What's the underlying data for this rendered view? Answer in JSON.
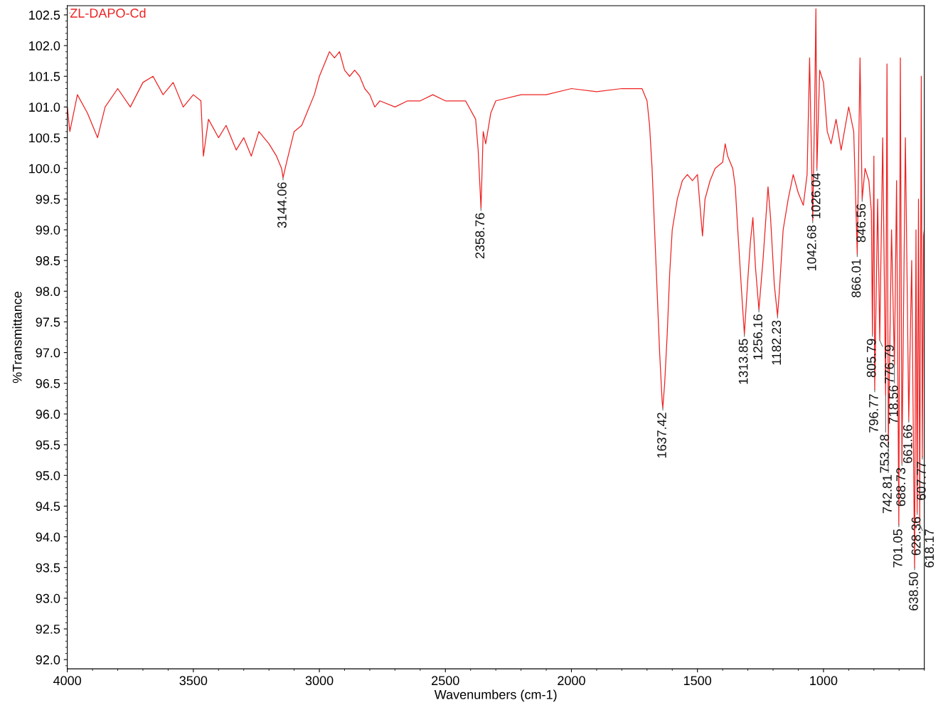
{
  "chart_data": {
    "type": "line",
    "xlabel": "Wavenumbers (cm-1)",
    "ylabel": "%Transmittance",
    "xlim": [
      4000,
      600
    ],
    "ylim": [
      91.85,
      102.65
    ],
    "xticks": [
      4000,
      3500,
      3000,
      2500,
      2000,
      1500,
      1000
    ],
    "yticks": [
      {
        "value": 92,
        "label": "92.0"
      },
      92.5,
      {
        "value": 93,
        "label": "93.0"
      },
      93.5,
      {
        "value": 94,
        "label": "94.0"
      },
      94.5,
      {
        "value": 95,
        "label": "95.0"
      },
      95.5,
      {
        "value": 96,
        "label": "96.0"
      },
      96.5,
      {
        "value": 97,
        "label": "97.0"
      },
      97.5,
      {
        "value": 98,
        "label": "98.0"
      },
      98.5,
      {
        "value": 99,
        "label": "99.0"
      },
      99.5,
      {
        "value": 100,
        "label": "100.0"
      },
      100.5,
      {
        "value": 101,
        "label": "101.0"
      },
      101.5,
      {
        "value": 102,
        "label": "102.0"
      },
      102.5
    ],
    "grid": false,
    "legend": "top left",
    "marker": "none",
    "line_style": "solid",
    "series": [
      {
        "name": "ZL-DAPO-Cd",
        "color": "#ee2222",
        "x": [
          4000,
          3990,
          3960,
          3920,
          3880,
          3850,
          3800,
          3750,
          3700,
          3660,
          3620,
          3580,
          3540,
          3500,
          3470,
          3460,
          3440,
          3400,
          3370,
          3330,
          3300,
          3270,
          3240,
          3200,
          3170,
          3150,
          3144.06,
          3130,
          3100,
          3070,
          3050,
          3020,
          3000,
          2980,
          2960,
          2940,
          2920,
          2900,
          2880,
          2860,
          2840,
          2820,
          2800,
          2780,
          2760,
          2700,
          2650,
          2600,
          2550,
          2500,
          2420,
          2380,
          2370,
          2358.76,
          2350,
          2340,
          2320,
          2300,
          2200,
          2100,
          2000,
          1900,
          1800,
          1720,
          1700,
          1690,
          1680,
          1670,
          1660,
          1650,
          1640,
          1637.42,
          1630,
          1620,
          1610,
          1600,
          1580,
          1560,
          1540,
          1520,
          1500,
          1480,
          1470,
          1450,
          1430,
          1400,
          1390,
          1380,
          1360,
          1350,
          1340,
          1325,
          1313.85,
          1300,
          1290,
          1280,
          1270,
          1256.16,
          1240,
          1220,
          1210,
          1195,
          1182.23,
          1175,
          1160,
          1140,
          1120,
          1100,
          1080,
          1065,
          1055,
          1042.68,
          1035,
          1030,
          1026.04,
          1015,
          1000,
          985,
          970,
          950,
          930,
          900,
          880,
          866.01,
          855,
          846.56,
          835,
          820,
          810,
          805.79,
          800,
          796.77,
          785,
          776.79,
          765,
          753.28,
          748,
          742.81,
          730,
          718.56,
          710,
          701.05,
          695,
          688.73,
          675,
          661.66,
          650,
          638.5,
          633,
          628.36,
          623,
          618.17,
          612,
          607.77,
          603,
          600
        ],
        "values": [
          101.0,
          100.6,
          101.2,
          100.9,
          100.5,
          101.0,
          101.3,
          101.0,
          101.4,
          101.5,
          101.2,
          101.4,
          101.0,
          101.2,
          101.1,
          100.2,
          100.8,
          100.5,
          100.7,
          100.3,
          100.5,
          100.2,
          100.6,
          100.4,
          100.2,
          100.0,
          99.85,
          100.1,
          100.6,
          100.7,
          100.9,
          101.2,
          101.5,
          101.7,
          101.9,
          101.8,
          101.9,
          101.6,
          101.5,
          101.6,
          101.5,
          101.3,
          101.2,
          101.0,
          101.1,
          101.0,
          101.1,
          101.1,
          101.2,
          101.1,
          101.1,
          100.8,
          100.3,
          99.35,
          100.6,
          100.4,
          100.9,
          101.1,
          101.2,
          101.2,
          101.3,
          101.25,
          101.3,
          101.3,
          101.1,
          100.7,
          100.0,
          99.0,
          98.0,
          97.0,
          96.2,
          96.1,
          96.5,
          97.3,
          98.3,
          99.0,
          99.5,
          99.8,
          99.9,
          99.8,
          99.9,
          98.9,
          99.5,
          99.8,
          100.0,
          100.1,
          100.4,
          100.2,
          100.0,
          99.7,
          99.0,
          98.0,
          97.3,
          98.2,
          98.8,
          99.2,
          98.4,
          97.7,
          98.5,
          99.7,
          99.2,
          98.1,
          97.6,
          98.0,
          99.0,
          99.5,
          99.9,
          99.6,
          99.4,
          99.9,
          101.8,
          99.15,
          101.0,
          102.6,
          100.0,
          101.6,
          101.4,
          100.6,
          100.4,
          100.8,
          100.3,
          101.0,
          100.6,
          98.6,
          101.8,
          99.5,
          100.0,
          99.8,
          99.3,
          97.3,
          100.2,
          96.4,
          99.5,
          97.2,
          100.5,
          96.3,
          101.7,
          95.5,
          99.0,
          96.8,
          99.8,
          94.2,
          101.8,
          95.2,
          100.5,
          95.9,
          98.5,
          93.5,
          99.0,
          94.4,
          99.5,
          94.2,
          101.5,
          95.3,
          98.9,
          99.0
        ]
      }
    ],
    "annotations": [
      {
        "text": "3144.06",
        "x": 3144.06,
        "y": 99.85
      },
      {
        "text": "2358.76",
        "x": 2358.76,
        "y": 99.35
      },
      {
        "text": "1637.42",
        "x": 1637.42,
        "y": 96.1
      },
      {
        "text": "1313.85",
        "x": 1313.85,
        "y": 97.3
      },
      {
        "text": "1256.16",
        "x": 1256.16,
        "y": 97.7
      },
      {
        "text": "1182.23",
        "x": 1182.23,
        "y": 97.6
      },
      {
        "text": "1042.68",
        "x": 1042.68,
        "y": 99.15
      },
      {
        "text": "1026.04",
        "x": 1026.04,
        "y": 100.0
      },
      {
        "text": "866.01",
        "x": 866.01,
        "y": 98.6
      },
      {
        "text": "846.56",
        "x": 846.56,
        "y": 99.5
      },
      {
        "text": "805.79",
        "x": 805.79,
        "y": 97.3
      },
      {
        "text": "796.77",
        "x": 796.77,
        "y": 96.4
      },
      {
        "text": "776.79",
        "x": 776.79,
        "y": 97.2
      },
      {
        "text": "753.28",
        "x": 753.28,
        "y": 96.3
      },
      {
        "text": "742.81",
        "x": 742.81,
        "y": 95.5
      },
      {
        "text": "718.56",
        "x": 718.56,
        "y": 96.8
      },
      {
        "text": "701.05",
        "x": 701.05,
        "y": 94.2
      },
      {
        "text": "688.73",
        "x": 688.73,
        "y": 95.2
      },
      {
        "text": "661.66",
        "x": 661.66,
        "y": 95.9
      },
      {
        "text": "638.50",
        "x": 638.5,
        "y": 93.5
      },
      {
        "text": "628.36",
        "x": 628.36,
        "y": 94.4
      },
      {
        "text": "618.17",
        "x": 618.17,
        "y": 94.2
      },
      {
        "text": "607.77",
        "x": 607.77,
        "y": 95.3
      }
    ]
  }
}
